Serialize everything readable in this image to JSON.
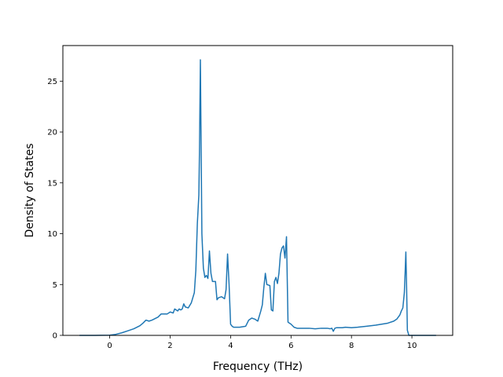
{
  "chart_data": {
    "type": "line",
    "title": "",
    "xlabel": "Frequency (THz)",
    "ylabel": "Density of States",
    "xlim": [
      -1.55,
      11.35
    ],
    "ylim": [
      0,
      28.5
    ],
    "xticks": [
      0,
      2,
      4,
      6,
      8,
      10
    ],
    "yticks": [
      0,
      5,
      10,
      15,
      20,
      25
    ],
    "grid": false,
    "line_color": "#1f77b4",
    "series": [
      {
        "x": [
          -1.0,
          -0.5,
          0.0,
          0.2,
          0.4,
          0.6,
          0.8,
          1.0,
          1.1,
          1.2,
          1.3,
          1.4,
          1.6,
          1.7,
          1.8,
          1.9,
          2.0,
          2.1,
          2.15,
          2.25,
          2.3,
          2.35,
          2.4,
          2.45,
          2.5,
          2.6,
          2.7,
          2.75,
          2.8,
          2.85,
          2.9,
          2.95,
          2.97,
          3.0,
          3.05,
          3.1,
          3.15,
          3.2,
          3.25,
          3.3,
          3.35,
          3.4,
          3.5,
          3.55,
          3.6,
          3.7,
          3.8,
          3.85,
          3.9,
          3.95,
          4.0,
          4.05,
          4.1,
          4.2,
          4.3,
          4.5,
          4.6,
          4.7,
          4.8,
          4.9,
          5.0,
          5.05,
          5.1,
          5.15,
          5.2,
          5.3,
          5.35,
          5.4,
          5.45,
          5.5,
          5.55,
          5.6,
          5.65,
          5.7,
          5.75,
          5.8,
          5.85,
          5.9,
          5.95,
          6.0,
          6.1,
          6.2,
          6.4,
          6.6,
          6.8,
          7.0,
          7.2,
          7.3,
          7.35,
          7.4,
          7.45,
          7.5,
          7.7,
          7.8,
          8.0,
          8.2,
          8.5,
          8.8,
          9.0,
          9.2,
          9.4,
          9.5,
          9.55,
          9.6,
          9.65,
          9.7,
          9.75,
          9.78,
          9.8,
          9.82,
          9.85,
          9.9,
          10.0,
          10.5,
          10.8
        ],
        "y": [
          0,
          0,
          0.02,
          0.1,
          0.25,
          0.45,
          0.65,
          0.95,
          1.2,
          1.5,
          1.4,
          1.5,
          1.8,
          2.1,
          2.1,
          2.1,
          2.3,
          2.2,
          2.6,
          2.4,
          2.6,
          2.5,
          2.6,
          3.1,
          2.8,
          2.7,
          3.2,
          3.7,
          4.2,
          6.4,
          11.0,
          13.8,
          18.0,
          27.1,
          10.0,
          6.6,
          5.7,
          5.9,
          5.6,
          8.3,
          6.1,
          5.3,
          5.3,
          3.5,
          3.7,
          3.8,
          3.6,
          4.5,
          8.0,
          5.0,
          1.1,
          0.9,
          0.8,
          0.8,
          0.8,
          0.9,
          1.5,
          1.7,
          1.6,
          1.4,
          2.4,
          3.0,
          4.7,
          6.1,
          5.0,
          4.9,
          2.5,
          2.4,
          5.3,
          5.7,
          5.1,
          6.1,
          8.0,
          8.6,
          8.8,
          7.6,
          9.7,
          1.3,
          1.2,
          1.1,
          0.8,
          0.7,
          0.7,
          0.7,
          0.65,
          0.7,
          0.7,
          0.65,
          0.7,
          0.4,
          0.7,
          0.75,
          0.75,
          0.8,
          0.75,
          0.8,
          0.9,
          1.0,
          1.1,
          1.2,
          1.4,
          1.6,
          1.8,
          2.0,
          2.4,
          2.7,
          4.2,
          6.5,
          8.2,
          5.5,
          0.5,
          0,
          0,
          0,
          0
        ]
      }
    ]
  }
}
